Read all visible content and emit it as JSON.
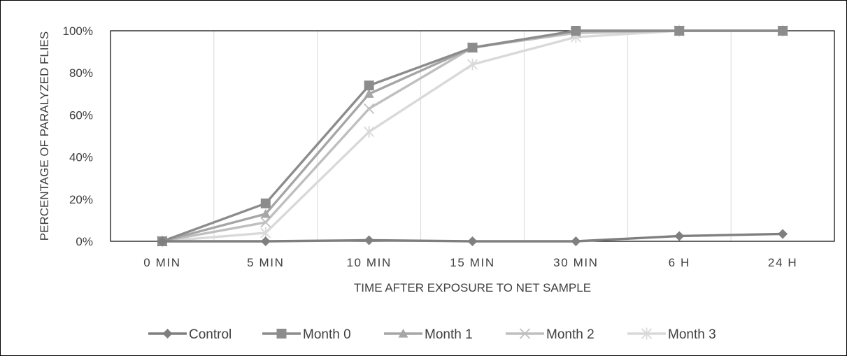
{
  "chart_data": {
    "type": "line",
    "title": "",
    "xlabel": "TIME AFTER EXPOSURE TO NET SAMPLE",
    "ylabel": "PERCENTAGE OF PARALYZED FLIES",
    "categories": [
      "0 MIN",
      "5 MIN",
      "10 MIN",
      "15 MIN",
      "30 MIN",
      "6 H",
      "24 H"
    ],
    "ylim": [
      0,
      100
    ],
    "yticks": [
      0,
      20,
      40,
      60,
      80,
      100
    ],
    "ytick_labels": [
      "0%",
      "20%",
      "40%",
      "60%",
      "80%",
      "100%"
    ],
    "grid": "vertical",
    "legend_position": "bottom",
    "series": [
      {
        "name": "Control",
        "marker": "diamond",
        "color": "#7f7f7f",
        "values": [
          0,
          0,
          0.5,
          0,
          0,
          2.5,
          3.5
        ]
      },
      {
        "name": "Month 0",
        "marker": "square",
        "color": "#8c8c8c",
        "values": [
          0,
          18,
          74,
          92,
          100,
          100,
          100
        ]
      },
      {
        "name": "Month 1",
        "marker": "triangle",
        "color": "#a6a6a6",
        "values": [
          0,
          13,
          70,
          92,
          100,
          100,
          100
        ]
      },
      {
        "name": "Month 2",
        "marker": "x",
        "color": "#bfbfbf",
        "values": [
          0,
          9,
          63,
          92,
          99,
          100,
          100
        ]
      },
      {
        "name": "Month 3",
        "marker": "star",
        "color": "#d9d9d9",
        "values": [
          0,
          4,
          52,
          84,
          97,
          100,
          100
        ]
      }
    ]
  }
}
